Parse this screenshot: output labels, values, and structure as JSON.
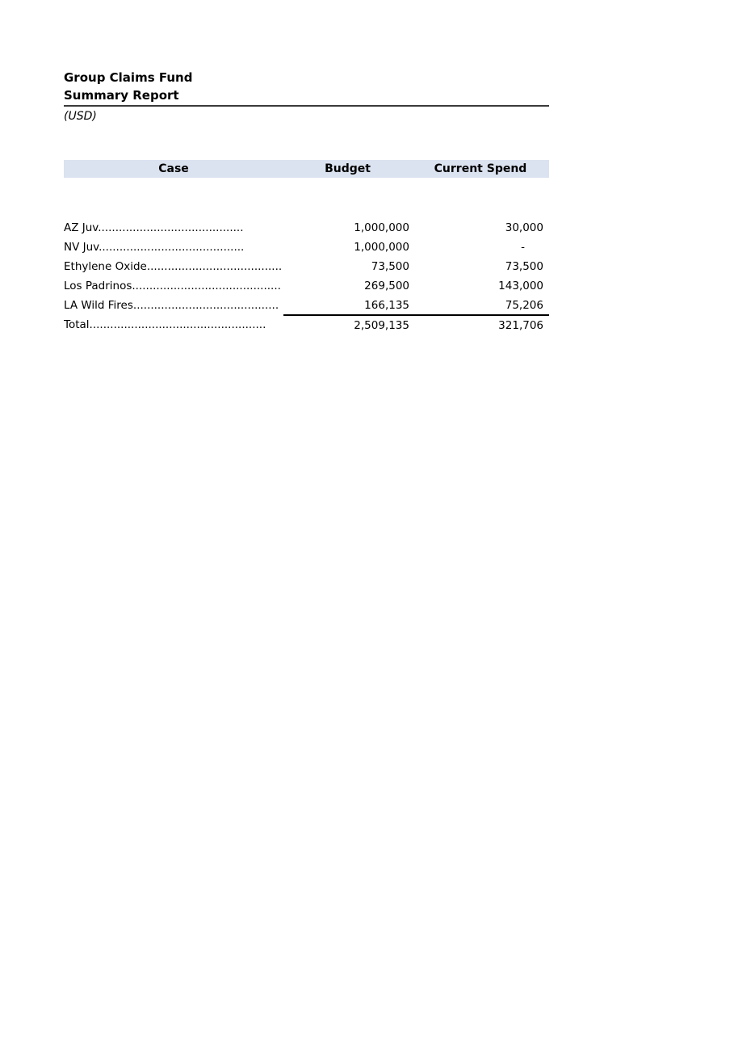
{
  "report": {
    "title_line1": "Group Claims Fund",
    "title_line2": "Summary Report",
    "currency_note": "(USD)",
    "colors": {
      "header_fill": "#dbe2f0",
      "title_rule": "#3a3a3a",
      "total_rule": "#000000",
      "text": "#000000",
      "background": "#ffffff"
    },
    "table": {
      "headers": {
        "case": "Case",
        "budget": "Budget",
        "current_spend": "Current Spend"
      },
      "rows": [
        {
          "case": "AZ Juv..........................................",
          "budget": "1,000,000",
          "current_spend": "30,000"
        },
        {
          "case": "NV Juv..........................................",
          "budget": "1,000,000",
          "current_spend": "-"
        },
        {
          "case": "Ethylene Oxide.......................................",
          "budget": "73,500",
          "current_spend": "73,500"
        },
        {
          "case": "Los Padrinos...........................................",
          "budget": "269,500",
          "current_spend": "143,000"
        },
        {
          "case": "LA Wild Fires..........................................",
          "budget": "166,135",
          "current_spend": "75,206"
        }
      ],
      "total": {
        "case": "Total...................................................",
        "budget": "2,509,135",
        "current_spend": "321,706"
      }
    }
  }
}
